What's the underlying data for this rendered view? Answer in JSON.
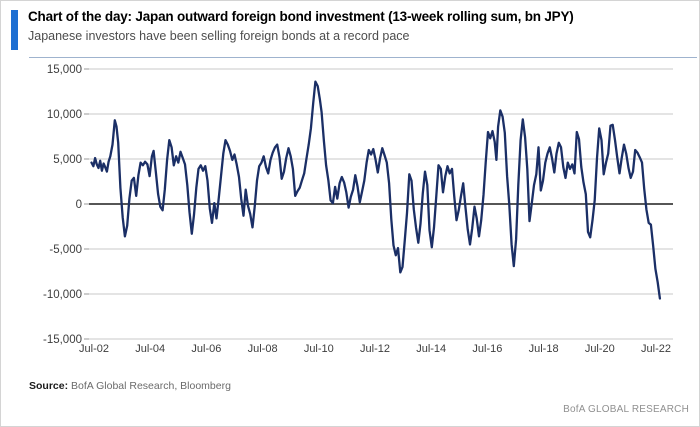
{
  "header": {
    "title": "Chart of the day: Japan outward foreign bond investment (13-week rolling sum, bn JPY)",
    "subtitle": "Japanese investors have been selling foreign bonds at a record pace",
    "accent_color": "#1e6fd2",
    "divider_color": "#9fb3ce"
  },
  "chart_data": {
    "type": "line",
    "title": "Japan outward foreign bond investment (13-week rolling sum, bn JPY)",
    "xlabel": "",
    "ylabel": "",
    "ylim": [
      -15000,
      15000
    ],
    "grid": true,
    "legend": "none",
    "line_color": "#1b2f66",
    "grid_color": "#c9c9c9",
    "zero_line_color": "#1f1f1f",
    "axis_text_color": "#3d3d3d",
    "yticks": [
      {
        "value": 15000,
        "label": "15,000"
      },
      {
        "value": 10000,
        "label": "10,000"
      },
      {
        "value": 5000,
        "label": "5,000"
      },
      {
        "value": 0,
        "label": "0"
      },
      {
        "value": -5000,
        "label": "-5,000"
      },
      {
        "value": -10000,
        "label": "-10,000"
      },
      {
        "value": -15000,
        "label": "-15,000"
      }
    ],
    "xticks": [
      {
        "t": 2002.54,
        "label": "Jul-02"
      },
      {
        "t": 2004.54,
        "label": "Jul-04"
      },
      {
        "t": 2006.54,
        "label": "Jul-06"
      },
      {
        "t": 2008.54,
        "label": "Jul-08"
      },
      {
        "t": 2010.54,
        "label": "Jul-10"
      },
      {
        "t": 2012.54,
        "label": "Jul-12"
      },
      {
        "t": 2014.54,
        "label": "Jul-14"
      },
      {
        "t": 2016.54,
        "label": "Jul-16"
      },
      {
        "t": 2018.54,
        "label": "Jul-18"
      },
      {
        "t": 2020.54,
        "label": "Jul-20"
      },
      {
        "t": 2022.54,
        "label": "Jul-22"
      }
    ],
    "series": [
      {
        "name": "13-week rolling sum, bn JPY",
        "points": [
          [
            2002.45,
            4600
          ],
          [
            2002.52,
            4200
          ],
          [
            2002.58,
            5100
          ],
          [
            2002.64,
            4400
          ],
          [
            2002.7,
            4000
          ],
          [
            2002.76,
            4800
          ],
          [
            2002.82,
            3700
          ],
          [
            2002.88,
            4500
          ],
          [
            2002.94,
            4100
          ],
          [
            2003.0,
            3600
          ],
          [
            2003.06,
            4700
          ],
          [
            2003.12,
            5300
          ],
          [
            2003.2,
            6600
          ],
          [
            2003.28,
            9300
          ],
          [
            2003.34,
            8600
          ],
          [
            2003.4,
            6800
          ],
          [
            2003.48,
            1800
          ],
          [
            2003.56,
            -1500
          ],
          [
            2003.64,
            -3600
          ],
          [
            2003.72,
            -2400
          ],
          [
            2003.8,
            600
          ],
          [
            2003.88,
            2600
          ],
          [
            2003.96,
            2900
          ],
          [
            2004.04,
            900
          ],
          [
            2004.12,
            3200
          ],
          [
            2004.2,
            4600
          ],
          [
            2004.28,
            4300
          ],
          [
            2004.36,
            4700
          ],
          [
            2004.44,
            4400
          ],
          [
            2004.52,
            3100
          ],
          [
            2004.6,
            5300
          ],
          [
            2004.66,
            5900
          ],
          [
            2004.74,
            3600
          ],
          [
            2004.82,
            1100
          ],
          [
            2004.9,
            -300
          ],
          [
            2004.98,
            -700
          ],
          [
            2005.06,
            1600
          ],
          [
            2005.14,
            4900
          ],
          [
            2005.22,
            7100
          ],
          [
            2005.3,
            6300
          ],
          [
            2005.38,
            4300
          ],
          [
            2005.46,
            5300
          ],
          [
            2005.54,
            4600
          ],
          [
            2005.62,
            5800
          ],
          [
            2005.7,
            5100
          ],
          [
            2005.78,
            4400
          ],
          [
            2005.86,
            2100
          ],
          [
            2005.94,
            -900
          ],
          [
            2006.02,
            -3300
          ],
          [
            2006.1,
            -1200
          ],
          [
            2006.18,
            1800
          ],
          [
            2006.26,
            3900
          ],
          [
            2006.34,
            4300
          ],
          [
            2006.42,
            3700
          ],
          [
            2006.5,
            4200
          ],
          [
            2006.58,
            2600
          ],
          [
            2006.66,
            -500
          ],
          [
            2006.74,
            -2100
          ],
          [
            2006.82,
            100
          ],
          [
            2006.9,
            -1600
          ],
          [
            2006.98,
            700
          ],
          [
            2007.06,
            3100
          ],
          [
            2007.14,
            5600
          ],
          [
            2007.22,
            7100
          ],
          [
            2007.3,
            6600
          ],
          [
            2007.38,
            5900
          ],
          [
            2007.46,
            4900
          ],
          [
            2007.54,
            5500
          ],
          [
            2007.62,
            4400
          ],
          [
            2007.7,
            3000
          ],
          [
            2007.78,
            600
          ],
          [
            2007.86,
            -1300
          ],
          [
            2007.94,
            1600
          ],
          [
            2008.02,
            -200
          ],
          [
            2008.1,
            -1100
          ],
          [
            2008.18,
            -2600
          ],
          [
            2008.26,
            -300
          ],
          [
            2008.34,
            2600
          ],
          [
            2008.42,
            4200
          ],
          [
            2008.5,
            4600
          ],
          [
            2008.58,
            5300
          ],
          [
            2008.66,
            4100
          ],
          [
            2008.74,
            3400
          ],
          [
            2008.82,
            4900
          ],
          [
            2008.9,
            5700
          ],
          [
            2008.98,
            6300
          ],
          [
            2009.06,
            6600
          ],
          [
            2009.14,
            5200
          ],
          [
            2009.22,
            2800
          ],
          [
            2009.3,
            3600
          ],
          [
            2009.38,
            5100
          ],
          [
            2009.46,
            6200
          ],
          [
            2009.54,
            5300
          ],
          [
            2009.62,
            3900
          ],
          [
            2009.7,
            900
          ],
          [
            2009.78,
            1400
          ],
          [
            2009.86,
            1800
          ],
          [
            2009.94,
            2600
          ],
          [
            2010.02,
            3400
          ],
          [
            2010.1,
            5000
          ],
          [
            2010.18,
            6600
          ],
          [
            2010.26,
            8400
          ],
          [
            2010.34,
            11200
          ],
          [
            2010.42,
            13600
          ],
          [
            2010.5,
            13100
          ],
          [
            2010.58,
            11600
          ],
          [
            2010.64,
            10200
          ],
          [
            2010.72,
            7000
          ],
          [
            2010.8,
            4300
          ],
          [
            2010.88,
            2600
          ],
          [
            2010.96,
            400
          ],
          [
            2011.04,
            100
          ],
          [
            2011.12,
            1900
          ],
          [
            2011.2,
            600
          ],
          [
            2011.28,
            2300
          ],
          [
            2011.36,
            3000
          ],
          [
            2011.44,
            2400
          ],
          [
            2011.52,
            1300
          ],
          [
            2011.6,
            -400
          ],
          [
            2011.68,
            800
          ],
          [
            2011.76,
            1600
          ],
          [
            2011.84,
            3200
          ],
          [
            2011.92,
            1900
          ],
          [
            2012.0,
            200
          ],
          [
            2012.08,
            1400
          ],
          [
            2012.16,
            2600
          ],
          [
            2012.24,
            4600
          ],
          [
            2012.32,
            6000
          ],
          [
            2012.4,
            5500
          ],
          [
            2012.48,
            6100
          ],
          [
            2012.56,
            4900
          ],
          [
            2012.64,
            3500
          ],
          [
            2012.72,
            5100
          ],
          [
            2012.8,
            6200
          ],
          [
            2012.88,
            5400
          ],
          [
            2012.96,
            4600
          ],
          [
            2013.04,
            2300
          ],
          [
            2013.12,
            -1700
          ],
          [
            2013.2,
            -4600
          ],
          [
            2013.28,
            -5700
          ],
          [
            2013.36,
            -4900
          ],
          [
            2013.44,
            -7600
          ],
          [
            2013.52,
            -7000
          ],
          [
            2013.6,
            -4000
          ],
          [
            2013.68,
            -1000
          ],
          [
            2013.76,
            3300
          ],
          [
            2013.84,
            2600
          ],
          [
            2013.92,
            -600
          ],
          [
            2014.0,
            -2600
          ],
          [
            2014.08,
            -4300
          ],
          [
            2014.16,
            -2200
          ],
          [
            2014.24,
            1200
          ],
          [
            2014.32,
            3600
          ],
          [
            2014.4,
            2100
          ],
          [
            2014.48,
            -2900
          ],
          [
            2014.56,
            -4800
          ],
          [
            2014.64,
            -2600
          ],
          [
            2014.72,
            900
          ],
          [
            2014.8,
            4300
          ],
          [
            2014.88,
            3900
          ],
          [
            2014.96,
            1300
          ],
          [
            2015.04,
            3100
          ],
          [
            2015.12,
            4200
          ],
          [
            2015.2,
            3400
          ],
          [
            2015.28,
            3900
          ],
          [
            2015.36,
            900
          ],
          [
            2015.44,
            -1800
          ],
          [
            2015.52,
            -700
          ],
          [
            2015.6,
            900
          ],
          [
            2015.68,
            2300
          ],
          [
            2015.76,
            -400
          ],
          [
            2015.84,
            -2800
          ],
          [
            2015.92,
            -4500
          ],
          [
            2016.0,
            -2700
          ],
          [
            2016.08,
            -300
          ],
          [
            2016.16,
            -1600
          ],
          [
            2016.24,
            -3600
          ],
          [
            2016.32,
            -1800
          ],
          [
            2016.4,
            1000
          ],
          [
            2016.48,
            4600
          ],
          [
            2016.56,
            8000
          ],
          [
            2016.64,
            7300
          ],
          [
            2016.72,
            8100
          ],
          [
            2016.8,
            6900
          ],
          [
            2016.86,
            4900
          ],
          [
            2016.92,
            8600
          ],
          [
            2017.0,
            10400
          ],
          [
            2017.08,
            9700
          ],
          [
            2017.16,
            7900
          ],
          [
            2017.24,
            3100
          ],
          [
            2017.32,
            -100
          ],
          [
            2017.4,
            -4500
          ],
          [
            2017.48,
            -6900
          ],
          [
            2017.56,
            -3900
          ],
          [
            2017.64,
            2100
          ],
          [
            2017.72,
            7100
          ],
          [
            2017.8,
            9400
          ],
          [
            2017.88,
            7400
          ],
          [
            2017.96,
            3900
          ],
          [
            2018.04,
            -1900
          ],
          [
            2018.12,
            100
          ],
          [
            2018.2,
            2100
          ],
          [
            2018.28,
            3300
          ],
          [
            2018.36,
            6300
          ],
          [
            2018.44,
            1500
          ],
          [
            2018.52,
            2600
          ],
          [
            2018.6,
            4600
          ],
          [
            2018.68,
            5600
          ],
          [
            2018.76,
            6300
          ],
          [
            2018.84,
            5100
          ],
          [
            2018.92,
            3500
          ],
          [
            2019.0,
            5600
          ],
          [
            2019.08,
            6800
          ],
          [
            2019.16,
            6300
          ],
          [
            2019.24,
            4100
          ],
          [
            2019.32,
            2900
          ],
          [
            2019.4,
            4600
          ],
          [
            2019.48,
            3900
          ],
          [
            2019.56,
            4400
          ],
          [
            2019.64,
            3400
          ],
          [
            2019.72,
            8000
          ],
          [
            2019.8,
            7200
          ],
          [
            2019.88,
            4100
          ],
          [
            2019.96,
            2400
          ],
          [
            2020.04,
            1100
          ],
          [
            2020.12,
            -3100
          ],
          [
            2020.2,
            -3700
          ],
          [
            2020.28,
            -1800
          ],
          [
            2020.36,
            400
          ],
          [
            2020.44,
            5100
          ],
          [
            2020.52,
            8400
          ],
          [
            2020.6,
            7100
          ],
          [
            2020.68,
            3300
          ],
          [
            2020.76,
            4600
          ],
          [
            2020.84,
            5600
          ],
          [
            2020.92,
            8700
          ],
          [
            2021.0,
            8800
          ],
          [
            2021.08,
            7100
          ],
          [
            2021.16,
            5200
          ],
          [
            2021.24,
            3400
          ],
          [
            2021.32,
            5100
          ],
          [
            2021.4,
            6600
          ],
          [
            2021.48,
            5600
          ],
          [
            2021.56,
            4000
          ],
          [
            2021.64,
            2900
          ],
          [
            2021.72,
            3600
          ],
          [
            2021.8,
            6000
          ],
          [
            2021.88,
            5700
          ],
          [
            2021.96,
            5200
          ],
          [
            2022.04,
            4600
          ],
          [
            2022.12,
            1700
          ],
          [
            2022.2,
            -600
          ],
          [
            2022.28,
            -2100
          ],
          [
            2022.36,
            -2300
          ],
          [
            2022.44,
            -4700
          ],
          [
            2022.52,
            -7200
          ],
          [
            2022.6,
            -8700
          ],
          [
            2022.68,
            -10500
          ]
        ]
      }
    ]
  },
  "footer": {
    "source_label": "Source:",
    "source_text": " BofA Global Research, Bloomberg",
    "brand": "BofA GLOBAL RESEARCH"
  }
}
